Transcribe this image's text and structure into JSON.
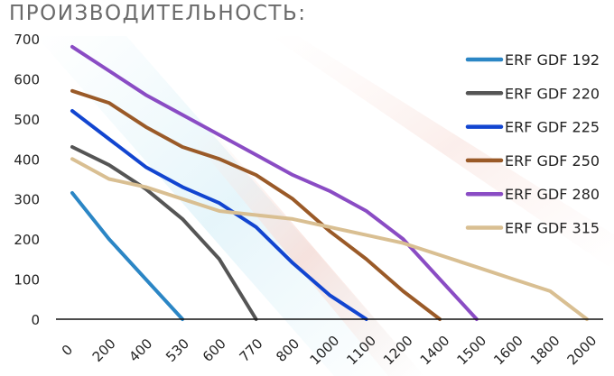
{
  "chart_data": {
    "type": "line",
    "title": "ПРОИЗВОДИТЕЛЬНОСТЬ:",
    "xlabel": "",
    "ylabel": "",
    "ylim": [
      0,
      700
    ],
    "yticks": [
      0,
      100,
      200,
      300,
      400,
      500,
      600,
      700
    ],
    "categories": [
      "0",
      "200",
      "400",
      "530",
      "600",
      "770",
      "800",
      "1000",
      "1100",
      "1200",
      "1400",
      "1500",
      "1600",
      "1800",
      "2000"
    ],
    "grid": false,
    "legend_position": "right",
    "series": [
      {
        "name": "ERF GDF 192",
        "color": "#2b86c5",
        "values": [
          315,
          200,
          100,
          0,
          null,
          null,
          null,
          null,
          null,
          null,
          null,
          null,
          null,
          null,
          null
        ]
      },
      {
        "name": "ERF GDF 220",
        "color": "#555555",
        "values": [
          430,
          385,
          325,
          250,
          150,
          0,
          null,
          null,
          null,
          null,
          null,
          null,
          null,
          null,
          null
        ]
      },
      {
        "name": "ERF GDF 225",
        "color": "#1245d0",
        "values": [
          520,
          450,
          380,
          330,
          290,
          230,
          140,
          60,
          0,
          null,
          null,
          null,
          null,
          null,
          null
        ]
      },
      {
        "name": "ERF GDF 250",
        "color": "#9a5a28",
        "values": [
          570,
          540,
          480,
          430,
          400,
          360,
          300,
          220,
          150,
          70,
          0,
          null,
          null,
          null,
          null
        ]
      },
      {
        "name": "ERF GDF 280",
        "color": "#8a4cc4",
        "values": [
          680,
          620,
          560,
          510,
          460,
          410,
          360,
          320,
          270,
          200,
          100,
          0,
          null,
          null,
          null
        ]
      },
      {
        "name": "ERF GDF 315",
        "color": "#d9bf92",
        "values": [
          400,
          350,
          330,
          300,
          270,
          260,
          250,
          230,
          210,
          190,
          160,
          130,
          100,
          70,
          0
        ]
      }
    ]
  }
}
